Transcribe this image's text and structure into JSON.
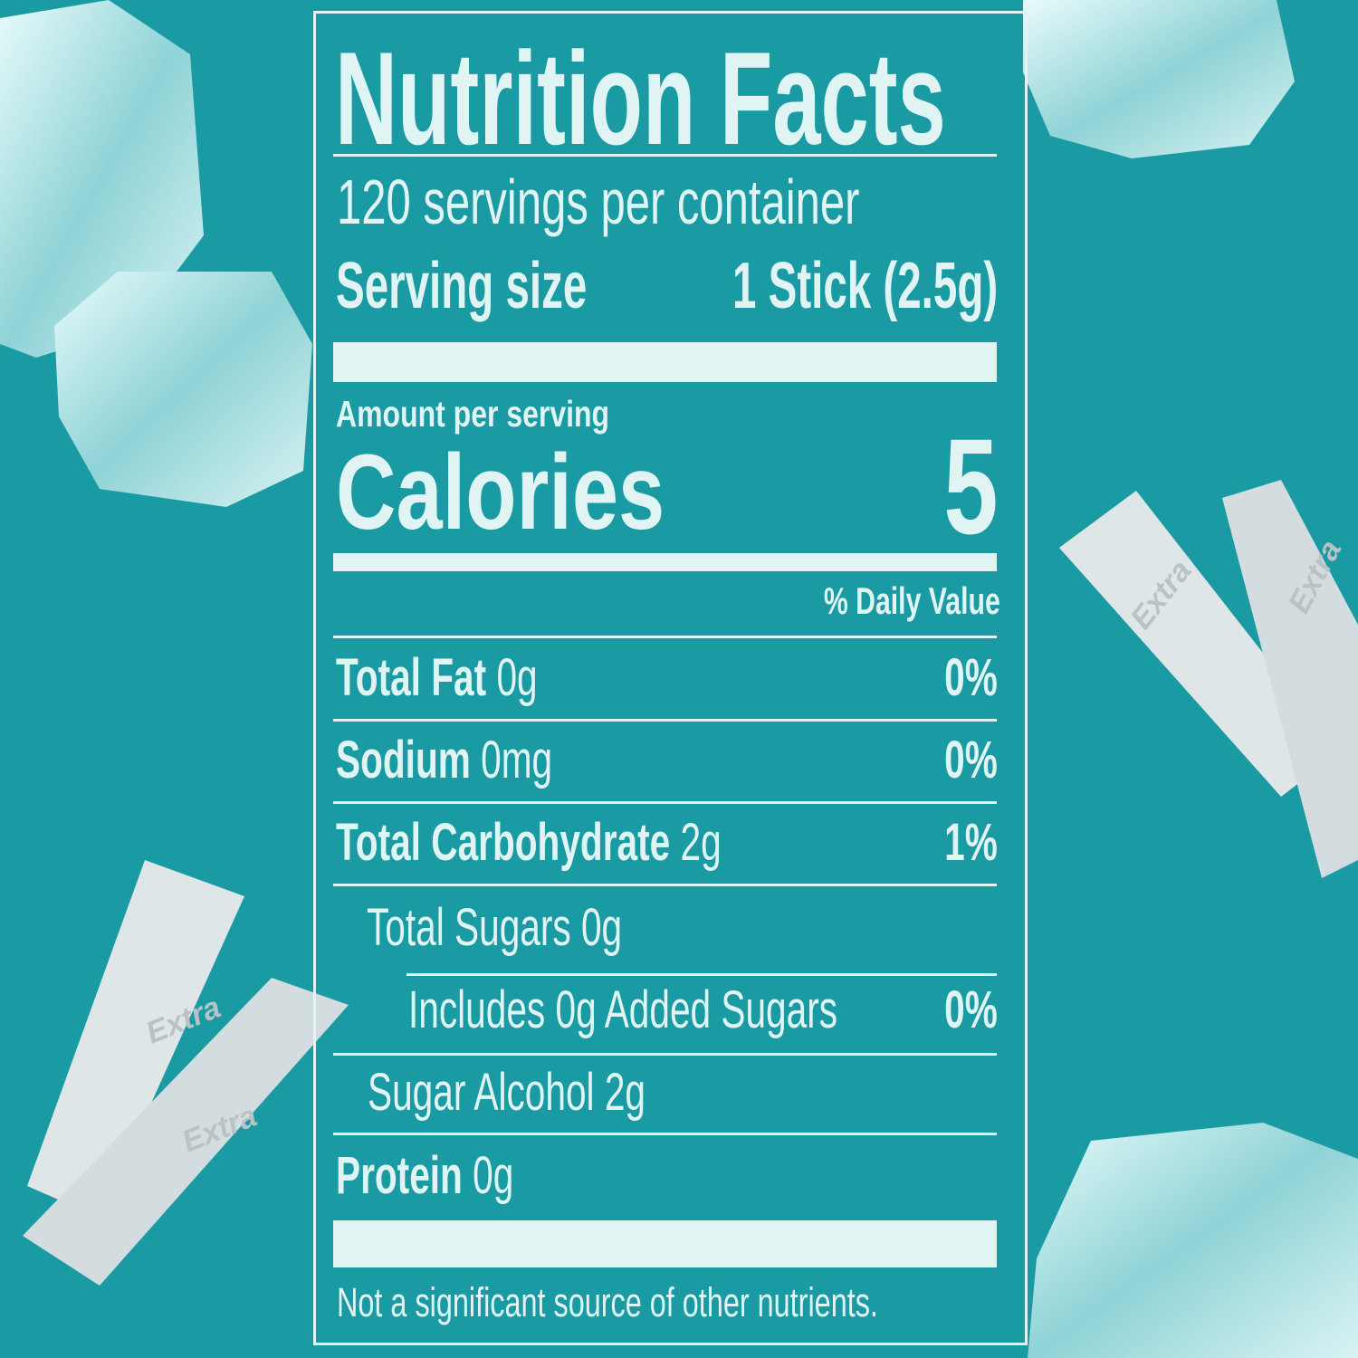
{
  "title": "Nutrition Facts",
  "servings_per_container": "120 servings per container",
  "serving_size": {
    "label": "Serving size",
    "value": "1 Stick (2.5g)"
  },
  "amount_per_serving": "Amount per serving",
  "calories": {
    "label": "Calories",
    "value": "5"
  },
  "daily_value_header": "% Daily Value",
  "nutrients": [
    {
      "name": "Total Fat",
      "amount": "0g",
      "dv": "0%"
    },
    {
      "name": "Sodium",
      "amount": "0mg",
      "dv": "0%"
    },
    {
      "name": "Total Carbohydrate",
      "amount": "2g",
      "dv": "1%"
    },
    {
      "name": "Total Sugars 0g",
      "amount": "",
      "dv": ""
    },
    {
      "name": "Includes 0g Added Sugars",
      "amount": "",
      "dv": "0%"
    },
    {
      "name": "Sugar Alcohol 2g",
      "amount": "",
      "dv": ""
    },
    {
      "name": "Protein",
      "amount": "0g",
      "dv": ""
    }
  ],
  "footnote": "Not a significant source of other nutrients.",
  "decor": {
    "gum_wrapper_text": "Extra"
  },
  "colors": {
    "background": "#1a9ba3",
    "text": "#e1f4f4"
  }
}
